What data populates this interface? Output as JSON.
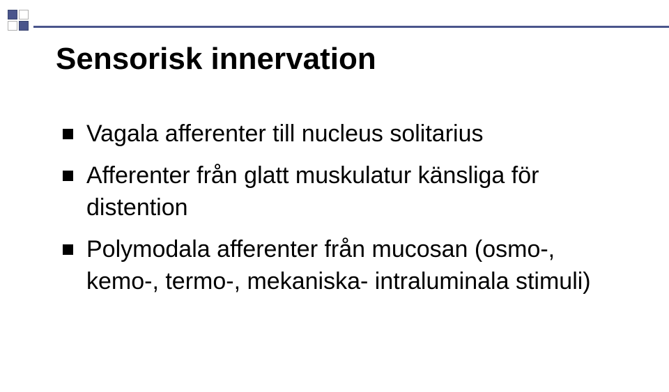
{
  "slide": {
    "title": "Sensorisk innervation",
    "bullets": [
      "Vagala afferenter till nucleus solitarius",
      "Afferenter från glatt muskulatur känsliga för distention",
      "Polymodala afferenter från mucosan (osmo-, kemo-, termo-, mekaniska- intraluminala stimuli)"
    ],
    "colors": {
      "accent": "#4a558c",
      "background": "#ffffff",
      "text": "#000000",
      "square_border_light": "#b0b0b0"
    },
    "typography": {
      "title_fontsize": 44,
      "bullet_fontsize": 34,
      "font_family": "Arial"
    }
  }
}
